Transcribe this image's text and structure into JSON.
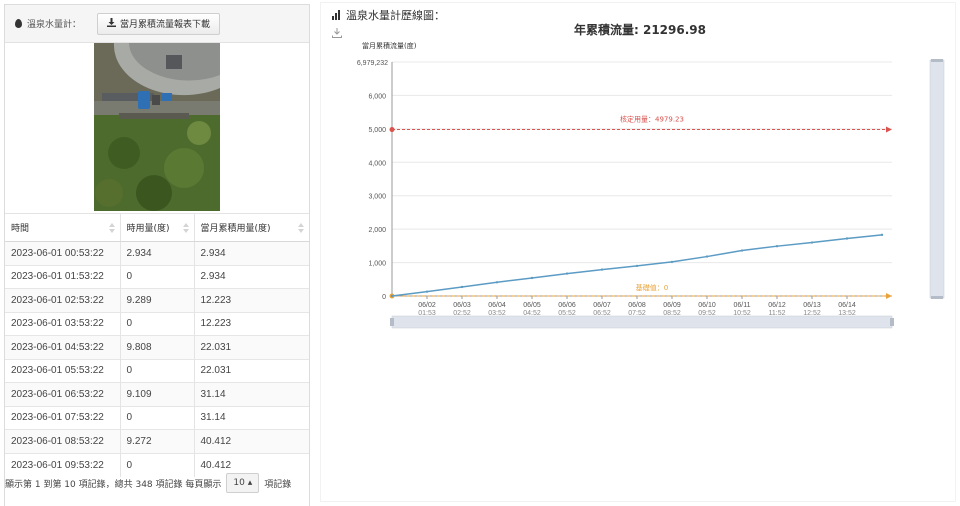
{
  "left": {
    "header_label": "溫泉水量計：",
    "download_button": "當月累積流量報表下載",
    "table": {
      "columns": [
        "時間",
        "時用量(度)",
        "當月累積用量(度)"
      ],
      "rows": [
        [
          "2023-06-01 00:53:22",
          "2.934",
          "2.934"
        ],
        [
          "2023-06-01 01:53:22",
          "0",
          "2.934"
        ],
        [
          "2023-06-01 02:53:22",
          "9.289",
          "12.223"
        ],
        [
          "2023-06-01 03:53:22",
          "0",
          "12.223"
        ],
        [
          "2023-06-01 04:53:22",
          "9.808",
          "22.031"
        ],
        [
          "2023-06-01 05:53:22",
          "0",
          "22.031"
        ],
        [
          "2023-06-01 06:53:22",
          "9.109",
          "31.14"
        ],
        [
          "2023-06-01 07:53:22",
          "0",
          "31.14"
        ],
        [
          "2023-06-01 08:53:22",
          "9.272",
          "40.412"
        ],
        [
          "2023-06-01 09:53:22",
          "0",
          "40.412"
        ]
      ]
    },
    "footer": {
      "info": "顯示第 1 到第 10 項記錄，總共 348 項記錄 每頁顯示",
      "page_size": "10 ▴",
      "suffix": "項記錄"
    }
  },
  "right": {
    "title": "溫泉水量計歷線圖："
  },
  "chart_data": {
    "type": "line",
    "title": "年累積流量: 21296.98",
    "ylabel": "當月累積流量(度)",
    "ylim": [
      0,
      6979232
    ],
    "y_display_max": 7000,
    "y_ticks": [
      "0",
      "1,000",
      "2,000",
      "3,000",
      "4,000",
      "5,000",
      "6,000"
    ],
    "y_max_label": "6,979,232",
    "x_ticks": [
      {
        "date": "06/02",
        "time": "01:53"
      },
      {
        "date": "06/03",
        "time": "02:52"
      },
      {
        "date": "06/04",
        "time": "03:52"
      },
      {
        "date": "06/05",
        "time": "04:52"
      },
      {
        "date": "06/06",
        "time": "05:52"
      },
      {
        "date": "06/07",
        "time": "06:52"
      },
      {
        "date": "06/08",
        "time": "07:52"
      },
      {
        "date": "06/09",
        "time": "08:52"
      },
      {
        "date": "06/10",
        "time": "09:52"
      },
      {
        "date": "06/11",
        "time": "10:52"
      },
      {
        "date": "06/12",
        "time": "11:52"
      },
      {
        "date": "06/13",
        "time": "12:52"
      },
      {
        "date": "06/14",
        "time": "13:52"
      }
    ],
    "series": [
      {
        "values": [
          0,
          130,
          270,
          410,
          540,
          670,
          790,
          900,
          1020,
          1180,
          1360,
          1490,
          1600,
          1720,
          1830
        ],
        "color": "#5b9bc4"
      }
    ],
    "markers": [
      {
        "label": "核定用量：4979.23",
        "value": 4979.23,
        "color": "#d9534f"
      },
      {
        "label": "基礎值：0",
        "value": 0,
        "color": "#e8a33a"
      }
    ],
    "grid": true
  }
}
